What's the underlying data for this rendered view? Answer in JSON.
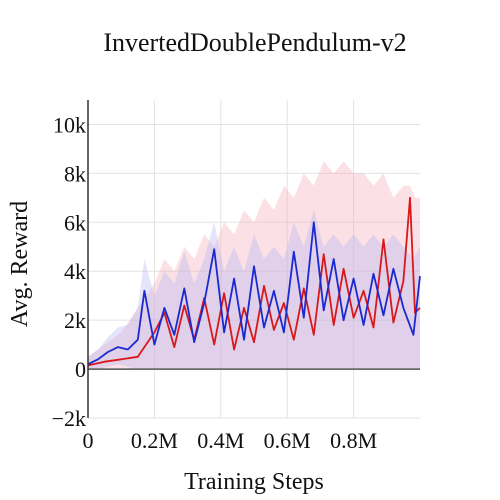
{
  "chart_data": {
    "type": "line",
    "title": "InvertedDoublePendulum-v2",
    "xlabel": "Training Steps",
    "ylabel": "Avg. Reward",
    "xlim": [
      0,
      1000000
    ],
    "ylim": [
      -2000,
      11000
    ],
    "grid": true,
    "x_ticks": [
      {
        "value": 0,
        "label": "0"
      },
      {
        "value": 200000,
        "label": "0.2M"
      },
      {
        "value": 400000,
        "label": "0.4M"
      },
      {
        "value": 600000,
        "label": "0.6M"
      },
      {
        "value": 800000,
        "label": "0.8M"
      }
    ],
    "y_ticks": [
      {
        "value": -2000,
        "label": "−2k"
      },
      {
        "value": 0,
        "label": "0"
      },
      {
        "value": 2000,
        "label": "2k"
      },
      {
        "value": 4000,
        "label": "4k"
      },
      {
        "value": 6000,
        "label": "6k"
      },
      {
        "value": 8000,
        "label": "8k"
      },
      {
        "value": 10000,
        "label": "10k"
      }
    ],
    "zero_line": 0,
    "series": [
      {
        "color": "#d7191c",
        "band_color": "#f4a9b4",
        "band_opacity": 0.35,
        "x": [
          0,
          50000,
          100000,
          150000,
          200000,
          230000,
          260000,
          290000,
          320000,
          350000,
          380000,
          410000,
          440000,
          470000,
          500000,
          530000,
          560000,
          590000,
          620000,
          650000,
          680000,
          710000,
          740000,
          770000,
          800000,
          830000,
          860000,
          890000,
          920000,
          950000,
          970000,
          985000,
          1000000
        ],
        "values": [
          150,
          300,
          400,
          500,
          1500,
          2300,
          900,
          2600,
          1200,
          2900,
          1000,
          3100,
          800,
          2500,
          1100,
          3400,
          1600,
          2700,
          1200,
          3300,
          1400,
          4700,
          1800,
          4100,
          2100,
          3200,
          1700,
          5300,
          1900,
          3600,
          7000,
          2300,
          2500
        ],
        "lower": [
          0,
          0,
          0,
          0,
          0,
          0,
          0,
          0,
          0,
          0,
          0,
          0,
          0,
          0,
          0,
          0,
          0,
          0,
          0,
          0,
          0,
          0,
          0,
          0,
          0,
          0,
          0,
          0,
          0,
          0,
          0,
          0,
          0
        ],
        "upper": [
          500,
          1000,
          1500,
          2500,
          3500,
          4500,
          4000,
          5000,
          4500,
          5500,
          5000,
          6000,
          5500,
          6500,
          6000,
          7000,
          6500,
          7500,
          7000,
          8000,
          7500,
          8500,
          8000,
          8500,
          8000,
          8000,
          7500,
          8000,
          7000,
          7500,
          7500,
          7000,
          7000
        ]
      },
      {
        "color": "#1a2ad1",
        "band_color": "#b3b3f2",
        "band_opacity": 0.35,
        "x": [
          0,
          30000,
          60000,
          90000,
          120000,
          150000,
          170000,
          200000,
          230000,
          260000,
          290000,
          320000,
          350000,
          380000,
          410000,
          440000,
          470000,
          500000,
          530000,
          560000,
          590000,
          620000,
          650000,
          680000,
          710000,
          740000,
          770000,
          800000,
          830000,
          860000,
          890000,
          920000,
          950000,
          980000,
          1000000
        ],
        "values": [
          200,
          400,
          700,
          900,
          800,
          1200,
          3200,
          1000,
          2500,
          1400,
          3300,
          1100,
          2700,
          4900,
          1500,
          3700,
          1200,
          4200,
          1700,
          3200,
          1500,
          4800,
          2100,
          6000,
          2400,
          4500,
          2000,
          3700,
          1800,
          3900,
          2200,
          4100,
          2500,
          1400,
          3800
        ],
        "lower": [
          0,
          0,
          100,
          200,
          100,
          0,
          0,
          0,
          0,
          0,
          0,
          0,
          0,
          0,
          0,
          0,
          0,
          0,
          0,
          0,
          0,
          0,
          0,
          0,
          0,
          0,
          0,
          0,
          0,
          0,
          0,
          0,
          0,
          0,
          0
        ],
        "upper": [
          500,
          800,
          1300,
          1700,
          1800,
          2500,
          4500,
          3000,
          4000,
          3500,
          4800,
          3500,
          4500,
          6000,
          4000,
          5000,
          4000,
          5500,
          4500,
          5000,
          4500,
          6000,
          5000,
          6500,
          5000,
          5500,
          5000,
          5500,
          5000,
          5500,
          5000,
          5500,
          5000,
          4500,
          5000
        ]
      }
    ]
  }
}
